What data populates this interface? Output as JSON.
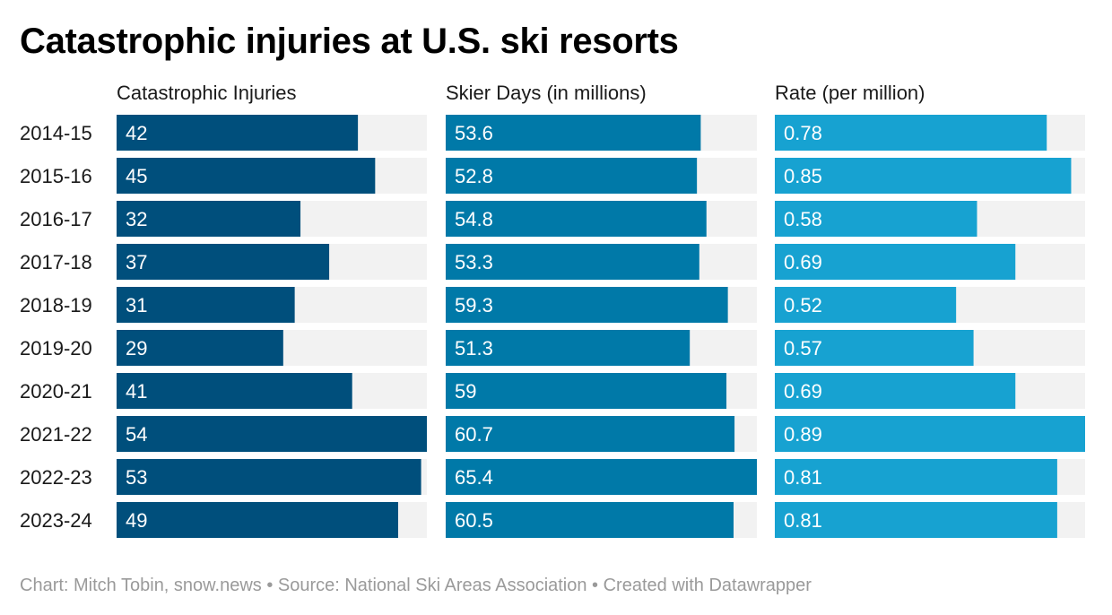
{
  "title": "Catastrophic injuries at U.S. ski resorts",
  "footer": "Chart: Mitch Tobin, snow.news • Source: National Ski Areas Association • Created with Datawrapper",
  "chart_data": {
    "type": "bar",
    "orientation": "horizontal",
    "layout": "split-bars",
    "categories": [
      "2014-15",
      "2015-16",
      "2016-17",
      "2017-18",
      "2018-19",
      "2019-20",
      "2020-21",
      "2021-22",
      "2022-23",
      "2023-24"
    ],
    "series": [
      {
        "name": "Catastrophic Injuries",
        "color": "#004f7c",
        "values": [
          42,
          45,
          32,
          37,
          31,
          29,
          41,
          54,
          53,
          49
        ],
        "labels": [
          "42",
          "45",
          "32",
          "37",
          "31",
          "29",
          "41",
          "54",
          "53",
          "49"
        ]
      },
      {
        "name": "Skier Days (in millions)",
        "color": "#0079a8",
        "values": [
          53.6,
          52.8,
          54.8,
          53.3,
          59.3,
          51.3,
          59,
          60.7,
          65.4,
          60.5
        ],
        "labels": [
          "53.6",
          "52.8",
          "54.8",
          "53.3",
          "59.3",
          "51.3",
          "59",
          "60.7",
          "65.4",
          "60.5"
        ]
      },
      {
        "name": "Rate (per million)",
        "color": "#17a2d1",
        "values": [
          0.78,
          0.85,
          0.58,
          0.69,
          0.52,
          0.57,
          0.69,
          0.89,
          0.81,
          0.81
        ],
        "labels": [
          "0.78",
          "0.85",
          "0.58",
          "0.69",
          "0.52",
          "0.57",
          "0.69",
          "0.89",
          "0.81",
          "0.81"
        ]
      }
    ],
    "background_color": "#f2f2f2",
    "legend": "none",
    "grid": false
  }
}
